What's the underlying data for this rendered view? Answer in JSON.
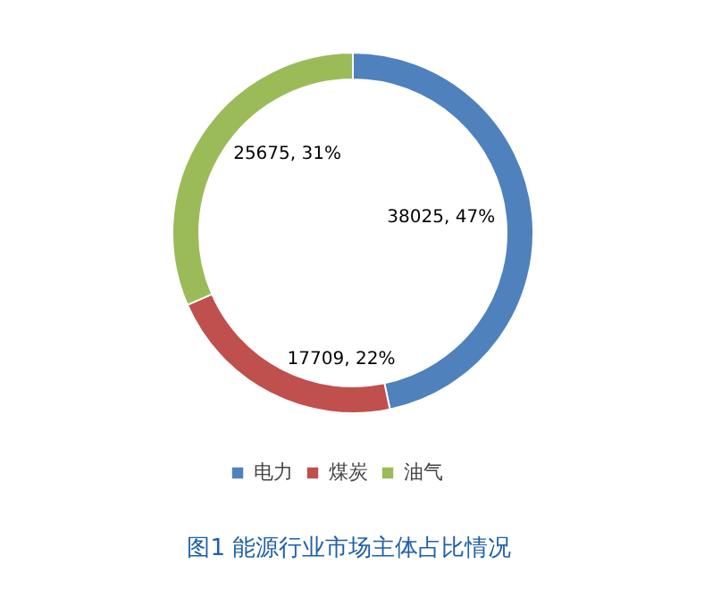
{
  "chart_data": {
    "type": "donut",
    "title": "图1  能源行业市场主体占比情况",
    "categories": [
      "电力",
      "煤炭",
      "油气"
    ],
    "values": [
      38025,
      17709,
      25675
    ],
    "colors": [
      "#4f81bd",
      "#c0504d",
      "#9bbb59"
    ],
    "value_labels": [
      "38025, 47%",
      "17709, 22%",
      "25675, 31%"
    ],
    "legend": "bottom"
  }
}
